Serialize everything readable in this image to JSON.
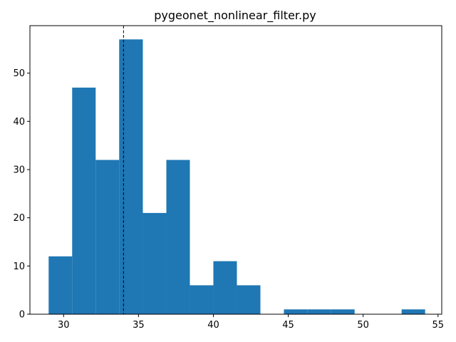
{
  "chart_data": {
    "type": "bar",
    "subtype": "histogram",
    "title": "pygeonet_nonlinear_filter.py",
    "xlabel": "",
    "ylabel": "",
    "xlim": [
      27.75,
      55.25
    ],
    "ylim": [
      0,
      59.85
    ],
    "x_ticks": [
      30,
      35,
      40,
      45,
      50,
      55
    ],
    "y_ticks": [
      0,
      10,
      20,
      30,
      40,
      50
    ],
    "bins": [
      {
        "start": 29.0,
        "end": 30.57,
        "count": 12
      },
      {
        "start": 30.57,
        "end": 32.14,
        "count": 47
      },
      {
        "start": 32.14,
        "end": 33.71,
        "count": 32
      },
      {
        "start": 33.71,
        "end": 35.29,
        "count": 57
      },
      {
        "start": 35.29,
        "end": 36.86,
        "count": 21
      },
      {
        "start": 36.86,
        "end": 38.43,
        "count": 32
      },
      {
        "start": 38.43,
        "end": 40.0,
        "count": 6
      },
      {
        "start": 40.0,
        "end": 41.57,
        "count": 11
      },
      {
        "start": 41.57,
        "end": 43.14,
        "count": 6
      },
      {
        "start": 43.14,
        "end": 44.71,
        "count": 0
      },
      {
        "start": 44.71,
        "end": 46.29,
        "count": 1
      },
      {
        "start": 46.29,
        "end": 47.86,
        "count": 1
      },
      {
        "start": 47.86,
        "end": 49.43,
        "count": 1
      },
      {
        "start": 49.43,
        "end": 51.0,
        "count": 0
      },
      {
        "start": 51.0,
        "end": 52.57,
        "count": 0
      },
      {
        "start": 52.57,
        "end": 54.14,
        "count": 1
      }
    ],
    "reference_line": {
      "x": 34.0,
      "style": "dashed",
      "color": "#000000"
    },
    "bar_color": "#1f77b4",
    "grid": false,
    "legend": null
  }
}
